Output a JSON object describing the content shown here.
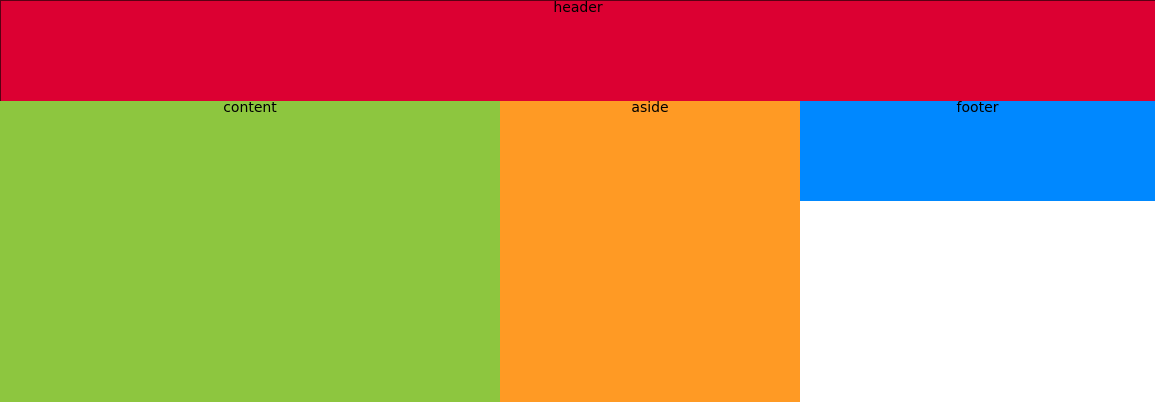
{
  "header": {
    "label": "header",
    "color": "#dc0032"
  },
  "content": {
    "label": "content",
    "color": "#8dc63f"
  },
  "aside": {
    "label": "aside",
    "color": "#ff9a24"
  },
  "footer": {
    "label": "footer",
    "color": "#0088ff"
  },
  "page": {
    "background": "#ffffff"
  }
}
